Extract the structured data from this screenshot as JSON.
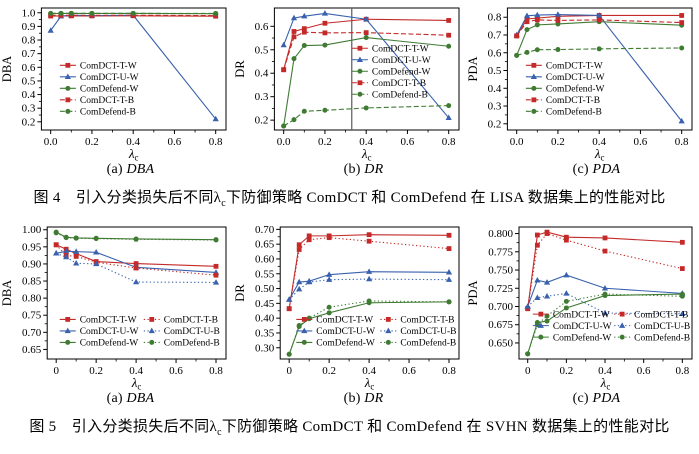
{
  "colors": {
    "red": "#c32a29",
    "blue": "#3961ae",
    "green": "#3f7b33",
    "vline": "#666666",
    "axis": "#000000"
  },
  "figure4": {
    "caption_prefix": "图 4　引入分类损失后不同λ",
    "caption_sub": "c",
    "caption_suffix": "下防御策略 ComDCT 和 ComDefend 在 LISA 数据集上的性能对比"
  },
  "figure5": {
    "caption_prefix": "图 5　引入分类损失后不同λ",
    "caption_sub": "c",
    "caption_suffix": "下防御策略 ComDCT 和 ComDefend 在 SVHN 数据集上的性能对比"
  },
  "chart_data": [
    {
      "id": "fig4a",
      "type": "line",
      "sub_caption_prefix": "(a) ",
      "sub_caption_metric": "DBA",
      "ylabel": "DBA",
      "xlabel_main": "λ",
      "xlabel_sub": "c",
      "x": [
        0,
        0.05,
        0.1,
        0.2,
        0.4,
        0.8
      ],
      "xlim": [
        -0.045,
        0.85
      ],
      "xticks": [
        0,
        0.2,
        0.4,
        0.6,
        0.8
      ],
      "xtick_labels": [
        "0.0",
        "0.2",
        "0.4",
        "0.6",
        "0.8"
      ],
      "xminor": [
        0.1,
        0.3,
        0.5,
        0.7
      ],
      "ylim": [
        0.14,
        1.035
      ],
      "yticks": [
        0.2,
        0.3,
        0.4,
        0.5,
        0.6,
        0.7,
        0.8,
        0.9,
        1.0
      ],
      "ytick_labels": [
        "0.2",
        "0.3",
        "0.4",
        "0.5",
        "0.6",
        "0.7",
        "0.8",
        "0.9",
        "1.0"
      ],
      "vline": null,
      "legend": {
        "fx": 0.1,
        "fy": 0.47,
        "cols": 1,
        "colw": 0.47,
        "rh": 11.5
      },
      "series": [
        {
          "name": "ComDCT-T-W",
          "color": "red",
          "dash": "solid",
          "marker": "square",
          "values": [
            0.976,
            0.977,
            0.977,
            0.977,
            0.978,
            0.975
          ]
        },
        {
          "name": "ComDCT-U-W",
          "color": "blue",
          "dash": "solid",
          "marker": "triangle",
          "values": [
            0.87,
            0.975,
            0.982,
            0.979,
            0.982,
            0.22
          ]
        },
        {
          "name": "ComDefend-W",
          "color": "green",
          "dash": "solid",
          "marker": "circle",
          "values": [
            0.994,
            0.995,
            0.995,
            0.995,
            0.995,
            0.993
          ]
        },
        {
          "name": "ComDCT-T-B",
          "color": "red",
          "dash": "dashed",
          "marker": "square",
          "values": [
            0.982,
            0.981,
            0.981,
            0.981,
            0.982,
            0.979
          ]
        },
        {
          "name": "ComDefend-B",
          "color": "green",
          "dash": "dashed",
          "marker": "circle",
          "values": [
            0.996,
            0.996,
            0.996,
            0.996,
            0.996,
            0.995
          ]
        }
      ]
    },
    {
      "id": "fig4b",
      "type": "line",
      "sub_caption_prefix": "(b) ",
      "sub_caption_metric": "DR",
      "ylabel": "DR",
      "xlabel_main": "λ",
      "xlabel_sub": "c",
      "x": [
        0,
        0.05,
        0.1,
        0.2,
        0.4,
        0.8
      ],
      "xlim": [
        -0.045,
        0.85
      ],
      "xticks": [
        0,
        0.2,
        0.4,
        0.6,
        0.8
      ],
      "xtick_labels": [
        "0.0",
        "0.2",
        "0.4",
        "0.6",
        "0.8"
      ],
      "xminor": [
        0.1,
        0.3,
        0.5,
        0.7
      ],
      "ylim": [
        0.158,
        0.678
      ],
      "yticks": [
        0.2,
        0.3,
        0.4,
        0.5,
        0.6
      ],
      "ytick_labels": [
        "0.2",
        "0.3",
        "0.4",
        "0.5",
        "0.6"
      ],
      "vline": 0.33,
      "legend": {
        "fx": 0.42,
        "fy": 0.33,
        "cols": 1,
        "colw": 0.47,
        "rh": 11.5
      },
      "series": [
        {
          "name": "ComDCT-T-W",
          "color": "red",
          "dash": "solid",
          "marker": "square",
          "values": [
            0.415,
            0.578,
            0.59,
            0.613,
            0.63,
            0.625
          ]
        },
        {
          "name": "ComDCT-U-W",
          "color": "blue",
          "dash": "solid",
          "marker": "triangle",
          "values": [
            0.52,
            0.635,
            0.643,
            0.655,
            0.63,
            0.21
          ]
        },
        {
          "name": "ComDefend-W",
          "color": "green",
          "dash": "solid",
          "marker": "circle",
          "values": [
            0.175,
            0.462,
            0.518,
            0.52,
            0.552,
            0.515
          ]
        },
        {
          "name": "ComDCT-T-B",
          "color": "red",
          "dash": "dashed",
          "marker": "square",
          "values": [
            0.415,
            0.555,
            0.575,
            0.572,
            0.573,
            0.562
          ]
        },
        {
          "name": "ComDefend-B",
          "color": "green",
          "dash": "dashed",
          "marker": "circle",
          "values": [
            0.175,
            0.202,
            0.238,
            0.242,
            0.252,
            0.262
          ]
        }
      ]
    },
    {
      "id": "fig4c",
      "type": "line",
      "sub_caption_prefix": "(c) ",
      "sub_caption_metric": "PDA",
      "ylabel": "PDA",
      "xlabel_main": "λ",
      "xlabel_sub": "c",
      "x": [
        0,
        0.05,
        0.1,
        0.2,
        0.4,
        0.8
      ],
      "xlim": [
        -0.045,
        0.85
      ],
      "xticks": [
        0,
        0.2,
        0.4,
        0.6,
        0.8
      ],
      "xtick_labels": [
        "0.0",
        "0.2",
        "0.4",
        "0.6",
        "0.8"
      ],
      "xminor": [
        0.1,
        0.3,
        0.5,
        0.7
      ],
      "ylim": [
        0.165,
        0.852
      ],
      "yticks": [
        0.2,
        0.3,
        0.4,
        0.5,
        0.6,
        0.7,
        0.8
      ],
      "ytick_labels": [
        "0.2",
        "0.3",
        "0.4",
        "0.5",
        "0.6",
        "0.7",
        "0.8"
      ],
      "vline": null,
      "legend": {
        "fx": 0.1,
        "fy": 0.47,
        "cols": 1,
        "colw": 0.47,
        "rh": 11.5
      },
      "series": [
        {
          "name": "ComDCT-T-W",
          "color": "red",
          "dash": "solid",
          "marker": "square",
          "values": [
            0.695,
            0.79,
            0.795,
            0.805,
            0.81,
            0.81
          ]
        },
        {
          "name": "ComDCT-U-W",
          "color": "blue",
          "dash": "solid",
          "marker": "triangle",
          "values": [
            0.7,
            0.808,
            0.812,
            0.815,
            0.81,
            0.215
          ]
        },
        {
          "name": "ComDefend-W",
          "color": "green",
          "dash": "solid",
          "marker": "circle",
          "values": [
            0.585,
            0.73,
            0.757,
            0.762,
            0.775,
            0.755
          ]
        },
        {
          "name": "ComDCT-T-B",
          "color": "red",
          "dash": "dashed",
          "marker": "square",
          "values": [
            0.695,
            0.775,
            0.785,
            0.782,
            0.785,
            0.77
          ]
        },
        {
          "name": "ComDefend-B",
          "color": "green",
          "dash": "dashed",
          "marker": "circle",
          "values": [
            0.585,
            0.602,
            0.617,
            0.618,
            0.622,
            0.627
          ]
        }
      ]
    },
    {
      "id": "fig5a",
      "type": "line",
      "sub_caption_prefix": "(a) ",
      "sub_caption_metric": "DBA",
      "ylabel": "DBA",
      "xlabel_main": "λ",
      "xlabel_sub": "c",
      "x": [
        0,
        0.05,
        0.1,
        0.2,
        0.4,
        0.8
      ],
      "xlim": [
        -0.045,
        0.85
      ],
      "xticks": [
        0,
        0.2,
        0.4,
        0.6,
        0.8
      ],
      "xtick_labels": [
        "0",
        "0.2",
        "0.4",
        "0.6",
        "0.8"
      ],
      "xminor": [
        0.1,
        0.3,
        0.5,
        0.7
      ],
      "ylim": [
        0.622,
        1.008
      ],
      "yticks": [
        0.65,
        0.7,
        0.75,
        0.8,
        0.85,
        0.9,
        0.95,
        1.0
      ],
      "ytick_labels": [
        "0.65",
        "0.70",
        "0.75",
        "0.80",
        "0.85",
        "0.90",
        "0.95",
        "1.00"
      ],
      "vline": null,
      "legend": {
        "fx": 0.07,
        "fy": 0.7,
        "cols": 2,
        "colw": 0.47,
        "rh": 11.5
      },
      "series": [
        {
          "name": "ComDCT-T-W",
          "color": "red",
          "dash": "solid",
          "marker": "square",
          "values": [
            0.956,
            0.943,
            0.93,
            0.907,
            0.901,
            0.893
          ]
        },
        {
          "name": "ComDCT-U-W",
          "color": "blue",
          "dash": "solid",
          "marker": "triangle",
          "values": [
            0.931,
            0.937,
            0.936,
            0.934,
            0.89,
            0.875
          ]
        },
        {
          "name": "ComDefend-W",
          "color": "green",
          "dash": "solid",
          "marker": "circle",
          "values": [
            0.993,
            0.978,
            0.976,
            0.975,
            0.973,
            0.971
          ]
        },
        {
          "name": "ComDCT-T-B",
          "color": "red",
          "dash": "dotted",
          "marker": "square",
          "values": [
            0.956,
            0.925,
            0.922,
            0.905,
            0.888,
            0.867
          ]
        },
        {
          "name": "ComDCT-U-B",
          "color": "blue",
          "dash": "dotted",
          "marker": "triangle",
          "values": [
            0.931,
            0.92,
            0.902,
            0.9,
            0.847,
            0.846
          ]
        },
        {
          "name": "ComDefend-B",
          "color": "green",
          "dash": "dotted",
          "marker": "circle",
          "values": [
            0.991,
            0.977,
            0.975,
            0.974,
            0.972,
            0.97
          ]
        }
      ]
    },
    {
      "id": "fig5b",
      "type": "line",
      "sub_caption_prefix": "(b) ",
      "sub_caption_metric": "DR",
      "ylabel": "DR",
      "xlabel_main": "λ",
      "xlabel_sub": "c",
      "x": [
        0,
        0.05,
        0.1,
        0.2,
        0.4,
        0.8
      ],
      "xlim": [
        -0.045,
        0.85
      ],
      "xticks": [
        0,
        0.2,
        0.4,
        0.6,
        0.8
      ],
      "xtick_labels": [
        "0",
        "0.2",
        "0.4",
        "0.6",
        "0.8"
      ],
      "xminor": [
        0.1,
        0.3,
        0.5,
        0.7
      ],
      "ylim": [
        0.262,
        0.708
      ],
      "yticks": [
        0.3,
        0.35,
        0.4,
        0.45,
        0.5,
        0.55,
        0.6,
        0.65,
        0.7
      ],
      "ytick_labels": [
        "0.30",
        "0.35",
        "0.40",
        "0.45",
        "0.50",
        "0.55",
        "0.60",
        "0.65",
        "0.70"
      ],
      "vline": null,
      "legend": {
        "fx": 0.09,
        "fy": 0.7,
        "cols": 2,
        "colw": 0.47,
        "rh": 11.5
      },
      "series": [
        {
          "name": "ComDCT-T-W",
          "color": "red",
          "dash": "solid",
          "marker": "square",
          "values": [
            0.432,
            0.648,
            0.678,
            0.678,
            0.682,
            0.68
          ]
        },
        {
          "name": "ComDCT-U-W",
          "color": "blue",
          "dash": "solid",
          "marker": "triangle",
          "values": [
            0.463,
            0.522,
            0.525,
            0.547,
            0.557,
            0.555
          ]
        },
        {
          "name": "ComDefend-W",
          "color": "green",
          "dash": "solid",
          "marker": "circle",
          "values": [
            0.278,
            0.372,
            0.398,
            0.418,
            0.452,
            0.455
          ]
        },
        {
          "name": "ComDCT-T-B",
          "color": "red",
          "dash": "dotted",
          "marker": "square",
          "values": [
            0.432,
            0.632,
            0.665,
            0.672,
            0.66,
            0.635
          ]
        },
        {
          "name": "ComDCT-U-B",
          "color": "blue",
          "dash": "dotted",
          "marker": "triangle",
          "values": [
            0.463,
            0.498,
            0.522,
            0.53,
            0.532,
            0.53
          ]
        },
        {
          "name": "ComDefend-B",
          "color": "green",
          "dash": "dotted",
          "marker": "circle",
          "values": [
            0.278,
            0.375,
            0.4,
            0.437,
            0.458,
            0.455
          ]
        }
      ]
    },
    {
      "id": "fig5c",
      "type": "line",
      "sub_caption_prefix": "(c) ",
      "sub_caption_metric": "PDA",
      "ylabel": "PDA",
      "xlabel_main": "λ",
      "xlabel_sub": "c",
      "x": [
        0,
        0.05,
        0.1,
        0.2,
        0.4,
        0.8
      ],
      "xlim": [
        -0.045,
        0.85
      ],
      "xticks": [
        0,
        0.2,
        0.4,
        0.6,
        0.8
      ],
      "xtick_labels": [
        "0",
        "0.2",
        "0.4",
        "0.6",
        "0.8"
      ],
      "xminor": [
        0.1,
        0.3,
        0.5,
        0.7
      ],
      "ylim": [
        0.628,
        0.809
      ],
      "yticks": [
        0.65,
        0.675,
        0.7,
        0.725,
        0.75,
        0.775,
        0.8
      ],
      "ytick_labels": [
        "0.650",
        "0.675",
        "0.700",
        "0.725",
        "0.750",
        "0.775",
        "0.800"
      ],
      "vline": null,
      "legend": {
        "fx": 0.08,
        "fy": 0.66,
        "cols": 2,
        "colw": 0.47,
        "rh": 11.5
      },
      "series": [
        {
          "name": "ComDCT-T-W",
          "color": "red",
          "dash": "solid",
          "marker": "square",
          "values": [
            0.697,
            0.798,
            0.802,
            0.795,
            0.794,
            0.788
          ]
        },
        {
          "name": "ComDCT-U-W",
          "color": "blue",
          "dash": "solid",
          "marker": "triangle",
          "values": [
            0.7,
            0.736,
            0.733,
            0.743,
            0.725,
            0.718
          ]
        },
        {
          "name": "ComDefend-W",
          "color": "green",
          "dash": "solid",
          "marker": "circle",
          "values": [
            0.635,
            0.678,
            0.68,
            0.698,
            0.715,
            0.717
          ]
        },
        {
          "name": "ComDCT-T-B",
          "color": "red",
          "dash": "dotted",
          "marker": "square",
          "values": [
            0.697,
            0.784,
            0.8,
            0.791,
            0.776,
            0.752
          ]
        },
        {
          "name": "ComDCT-U-B",
          "color": "blue",
          "dash": "dotted",
          "marker": "triangle",
          "values": [
            0.7,
            0.712,
            0.714,
            0.718,
            0.691,
            0.69
          ]
        },
        {
          "name": "ComDefend-B",
          "color": "green",
          "dash": "dotted",
          "marker": "circle",
          "values": [
            0.635,
            0.675,
            0.687,
            0.707,
            0.717,
            0.714
          ]
        }
      ]
    }
  ]
}
